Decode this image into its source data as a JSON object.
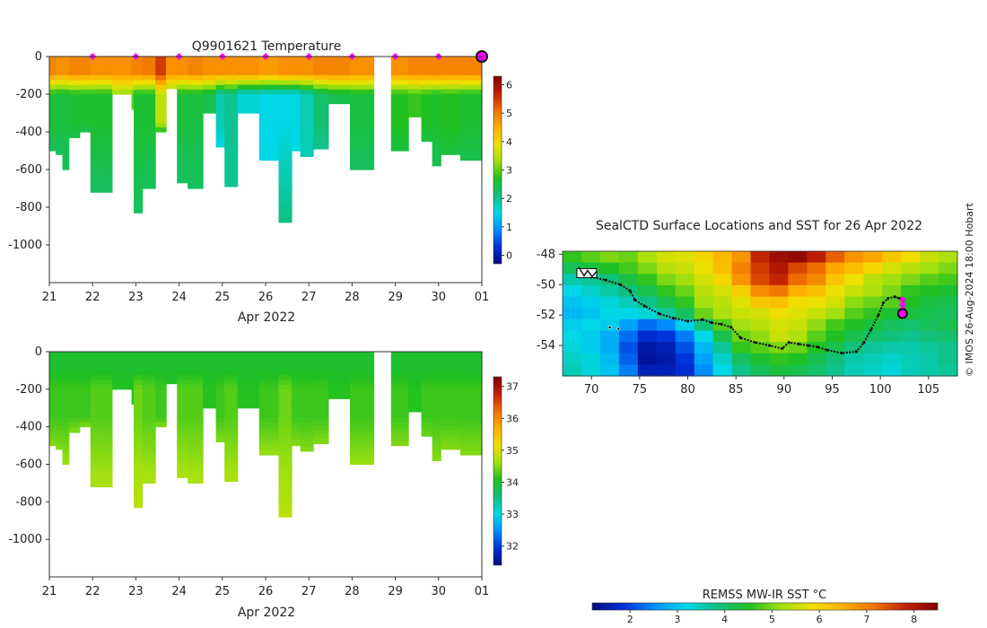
{
  "credit": "© IMOS 26-Aug-2024 18:00 Hobart",
  "chart_data": [
    {
      "id": "temperature",
      "type": "heatmap",
      "title": "Q9901621  Temperature",
      "xlabel": "Apr 2022",
      "xticks": [
        "21",
        "22",
        "23",
        "24",
        "25",
        "26",
        "27",
        "28",
        "29",
        "30",
        "01"
      ],
      "xlim": [
        0,
        10
      ],
      "ylim": [
        -1200,
        0
      ],
      "yticks": [
        0,
        -200,
        -400,
        -600,
        -800,
        -1000
      ],
      "surface_markers_days": [
        1,
        2,
        3,
        4,
        5,
        6,
        7,
        8,
        9,
        10
      ],
      "current_marker_day": 10,
      "colorbar": {
        "min": -0.3,
        "max": 6.3,
        "ticks": [
          0,
          1,
          2,
          3,
          4,
          5,
          6
        ],
        "colors": [
          "#000a80",
          "#0030d8",
          "#0090ff",
          "#00d8e8",
          "#10c080",
          "#20c020",
          "#a0e010",
          "#f0e000",
          "#ffb000",
          "#f07000",
          "#c02000",
          "#800000"
        ]
      },
      "profiles": [
        {
          "day": 0.0,
          "depth": 500,
          "top": 4.9,
          "mid": 2.6,
          "deep": 2.3
        },
        {
          "day": 0.15,
          "depth": 520,
          "top": 4.8,
          "mid": 2.5,
          "deep": 2.3
        },
        {
          "day": 0.3,
          "depth": 600,
          "top": 4.8,
          "mid": 2.5,
          "deep": 2.3
        },
        {
          "day": 0.45,
          "depth": 430,
          "top": 4.9,
          "mid": 2.6,
          "deep": 2.4
        },
        {
          "day": 0.7,
          "depth": 400,
          "top": 4.9,
          "mid": 2.6,
          "deep": 2.4
        },
        {
          "day": 0.95,
          "depth": 720,
          "top": 4.8,
          "mid": 2.6,
          "deep": 2.3
        },
        {
          "day": 1.45,
          "depth": 200,
          "top": 4.8,
          "mid": 3.2,
          "deep": 3.0
        },
        {
          "day": 1.9,
          "depth": 280,
          "top": 4.9,
          "mid": 3.0,
          "deep": 2.8
        },
        {
          "day": 1.95,
          "depth": 830,
          "top": 4.9,
          "mid": 2.6,
          "deep": 2.3
        },
        {
          "day": 2.15,
          "depth": 700,
          "top": 5.0,
          "mid": 2.6,
          "deep": 2.3
        },
        {
          "day": 2.45,
          "depth": 400,
          "top": 5.5,
          "mid": 3.5,
          "deep": 2.6
        },
        {
          "day": 2.7,
          "depth": 170,
          "top": 4.8,
          "mid": 2.9,
          "deep": 2.7
        },
        {
          "day": 2.95,
          "depth": 670,
          "top": 4.8,
          "mid": 2.5,
          "deep": 2.3
        },
        {
          "day": 3.2,
          "depth": 700,
          "top": 4.9,
          "mid": 2.5,
          "deep": 2.3
        },
        {
          "day": 3.55,
          "depth": 300,
          "top": 4.8,
          "mid": 2.4,
          "deep": 2.2
        },
        {
          "day": 3.85,
          "depth": 480,
          "top": 4.8,
          "mid": 1.8,
          "deep": 1.5
        },
        {
          "day": 4.05,
          "depth": 690,
          "top": 4.8,
          "mid": 2.0,
          "deep": 2.0
        },
        {
          "day": 4.35,
          "depth": 300,
          "top": 4.8,
          "mid": 1.6,
          "deep": 1.4
        },
        {
          "day": 4.85,
          "depth": 550,
          "top": 4.7,
          "mid": 1.5,
          "deep": 1.5
        },
        {
          "day": 5.3,
          "depth": 880,
          "top": 4.8,
          "mid": 1.5,
          "deep": 2.1
        },
        {
          "day": 5.6,
          "depth": 500,
          "top": 4.8,
          "mid": 1.5,
          "deep": 1.5
        },
        {
          "day": 5.8,
          "depth": 530,
          "top": 4.8,
          "mid": 1.8,
          "deep": 1.8
        },
        {
          "day": 6.1,
          "depth": 490,
          "top": 4.9,
          "mid": 2.2,
          "deep": 2.0
        },
        {
          "day": 6.45,
          "depth": 250,
          "top": 4.9,
          "mid": 2.4,
          "deep": 2.3
        },
        {
          "day": 6.95,
          "depth": 600,
          "top": 4.8,
          "mid": 2.5,
          "deep": 2.3
        },
        {
          "day": 7.5,
          "depth": 0,
          "top": 0,
          "mid": 0,
          "deep": 0
        },
        {
          "day": 7.9,
          "depth": 500,
          "top": 4.8,
          "mid": 2.7,
          "deep": 2.5
        },
        {
          "day": 8.3,
          "depth": 320,
          "top": 4.9,
          "mid": 2.8,
          "deep": 2.6
        },
        {
          "day": 8.6,
          "depth": 450,
          "top": 4.9,
          "mid": 2.7,
          "deep": 2.5
        },
        {
          "day": 8.85,
          "depth": 580,
          "top": 4.9,
          "mid": 2.6,
          "deep": 2.4
        },
        {
          "day": 9.05,
          "depth": 520,
          "top": 4.9,
          "mid": 2.7,
          "deep": 2.5
        },
        {
          "day": 9.5,
          "depth": 550,
          "top": 4.9,
          "mid": 2.6,
          "deep": 2.4
        }
      ]
    },
    {
      "id": "salinity",
      "type": "heatmap",
      "title": "",
      "xlabel": "Apr 2022",
      "xticks": [
        "21",
        "22",
        "23",
        "24",
        "25",
        "26",
        "27",
        "28",
        "29",
        "30",
        "01"
      ],
      "xlim": [
        0,
        10
      ],
      "ylim": [
        -1200,
        0
      ],
      "yticks": [
        0,
        -200,
        -400,
        -600,
        -800,
        -1000
      ],
      "colorbar": {
        "min": 31.4,
        "max": 37.3,
        "ticks": [
          32,
          33,
          34,
          35,
          36,
          37
        ],
        "colors": [
          "#000a80",
          "#0030d8",
          "#0090ff",
          "#00d8e8",
          "#10c080",
          "#20c020",
          "#a0e010",
          "#f0e000",
          "#ffb000",
          "#f07000",
          "#c02000",
          "#800000"
        ]
      },
      "profiles": [
        {
          "day": 0.0,
          "depth": 500,
          "top": 34.0,
          "mid": 34.2,
          "deep": 34.5
        },
        {
          "day": 0.15,
          "depth": 520,
          "top": 34.0,
          "mid": 34.2,
          "deep": 34.5
        },
        {
          "day": 0.3,
          "depth": 600,
          "top": 34.0,
          "mid": 34.2,
          "deep": 34.6
        },
        {
          "day": 0.45,
          "depth": 430,
          "top": 34.0,
          "mid": 34.2,
          "deep": 34.5
        },
        {
          "day": 0.7,
          "depth": 400,
          "top": 34.0,
          "mid": 34.2,
          "deep": 34.5
        },
        {
          "day": 0.95,
          "depth": 720,
          "top": 34.0,
          "mid": 34.3,
          "deep": 34.7
        },
        {
          "day": 1.45,
          "depth": 200,
          "top": 34.0,
          "mid": 34.1,
          "deep": 34.2
        },
        {
          "day": 1.9,
          "depth": 280,
          "top": 34.0,
          "mid": 34.1,
          "deep": 34.3
        },
        {
          "day": 1.95,
          "depth": 830,
          "top": 34.0,
          "mid": 34.4,
          "deep": 34.8
        },
        {
          "day": 2.15,
          "depth": 700,
          "top": 34.0,
          "mid": 34.3,
          "deep": 34.7
        },
        {
          "day": 2.45,
          "depth": 400,
          "top": 34.0,
          "mid": 34.2,
          "deep": 34.5
        },
        {
          "day": 2.7,
          "depth": 170,
          "top": 34.0,
          "mid": 34.1,
          "deep": 34.2
        },
        {
          "day": 2.95,
          "depth": 670,
          "top": 34.0,
          "mid": 34.3,
          "deep": 34.7
        },
        {
          "day": 3.2,
          "depth": 700,
          "top": 34.0,
          "mid": 34.3,
          "deep": 34.7
        },
        {
          "day": 3.55,
          "depth": 300,
          "top": 34.0,
          "mid": 34.1,
          "deep": 34.3
        },
        {
          "day": 3.85,
          "depth": 480,
          "top": 34.0,
          "mid": 34.2,
          "deep": 34.5
        },
        {
          "day": 4.05,
          "depth": 690,
          "top": 34.0,
          "mid": 34.3,
          "deep": 34.7
        },
        {
          "day": 4.35,
          "depth": 300,
          "top": 34.0,
          "mid": 34.1,
          "deep": 34.3
        },
        {
          "day": 4.85,
          "depth": 550,
          "top": 34.0,
          "mid": 34.2,
          "deep": 34.6
        },
        {
          "day": 5.3,
          "depth": 880,
          "top": 34.0,
          "mid": 34.4,
          "deep": 34.8
        },
        {
          "day": 5.6,
          "depth": 500,
          "top": 34.0,
          "mid": 34.2,
          "deep": 34.5
        },
        {
          "day": 5.8,
          "depth": 530,
          "top": 34.0,
          "mid": 34.2,
          "deep": 34.5
        },
        {
          "day": 6.1,
          "depth": 490,
          "top": 34.0,
          "mid": 34.2,
          "deep": 34.5
        },
        {
          "day": 6.45,
          "depth": 250,
          "top": 34.0,
          "mid": 34.1,
          "deep": 34.2
        },
        {
          "day": 6.95,
          "depth": 600,
          "top": 34.0,
          "mid": 34.2,
          "deep": 34.6
        },
        {
          "day": 7.5,
          "depth": 0,
          "top": 0,
          "mid": 0,
          "deep": 0
        },
        {
          "day": 7.9,
          "depth": 500,
          "top": 34.0,
          "mid": 34.2,
          "deep": 34.5
        },
        {
          "day": 8.3,
          "depth": 320,
          "top": 34.0,
          "mid": 34.1,
          "deep": 34.3
        },
        {
          "day": 8.6,
          "depth": 450,
          "top": 34.0,
          "mid": 34.2,
          "deep": 34.4
        },
        {
          "day": 8.85,
          "depth": 580,
          "top": 34.0,
          "mid": 34.2,
          "deep": 34.5
        },
        {
          "day": 9.05,
          "depth": 520,
          "top": 34.0,
          "mid": 34.2,
          "deep": 34.5
        },
        {
          "day": 9.5,
          "depth": 550,
          "top": 34.0,
          "mid": 34.2,
          "deep": 34.5
        }
      ]
    },
    {
      "id": "sst-map",
      "type": "heatmap",
      "title": "SealCTD Surface Locations and SST for 26 Apr 2022",
      "xlim": [
        67,
        108
      ],
      "ylim": [
        -56,
        -47.8
      ],
      "xticks": [
        70,
        75,
        80,
        85,
        90,
        95,
        100,
        105
      ],
      "yticks": [
        -48,
        -50,
        -52,
        -54
      ],
      "colorbar": {
        "label": "REMSS MW-IR SST °C",
        "min": 1.2,
        "max": 8.5,
        "ticks": [
          2,
          3,
          4,
          5,
          6,
          7,
          8
        ],
        "colors": [
          "#000a80",
          "#0030d8",
          "#0090ff",
          "#00d8e8",
          "#10c080",
          "#20c020",
          "#a0e010",
          "#f0e000",
          "#ffb000",
          "#f07000",
          "#c02000",
          "#800000"
        ]
      },
      "sst_rows": [
        [
          4.6,
          4.8,
          5.0,
          4.9,
          5.3,
          5.6,
          5.7,
          6.0,
          6.4,
          6.8,
          7.8,
          8.2,
          8.3,
          7.9,
          7.3,
          6.8,
          6.6,
          6.2,
          5.9,
          5.5,
          5.3
        ],
        [
          4.1,
          4.3,
          4.5,
          4.7,
          5.0,
          5.4,
          5.5,
          5.8,
          6.3,
          7.0,
          7.6,
          8.0,
          7.5,
          7.2,
          6.6,
          6.3,
          6.0,
          5.6,
          5.4,
          5.2,
          5.0
        ],
        [
          3.6,
          3.7,
          3.9,
          4.3,
          4.6,
          5.0,
          5.2,
          5.6,
          6.0,
          6.8,
          7.5,
          7.8,
          7.2,
          6.9,
          6.2,
          5.8,
          5.4,
          5.2,
          5.0,
          4.8,
          4.7
        ],
        [
          3.2,
          3.4,
          3.6,
          3.9,
          4.2,
          4.6,
          4.9,
          5.4,
          5.6,
          6.1,
          6.9,
          7.1,
          6.5,
          6.3,
          5.8,
          5.5,
          5.3,
          5.0,
          4.6,
          4.5,
          4.4
        ],
        [
          3.0,
          3.1,
          3.3,
          3.5,
          3.8,
          4.2,
          4.6,
          5.2,
          5.4,
          5.7,
          6.2,
          6.3,
          5.9,
          5.8,
          5.6,
          5.1,
          4.9,
          4.8,
          4.5,
          4.3,
          4.2
        ],
        [
          2.9,
          3.0,
          3.2,
          3.2,
          3.3,
          3.7,
          4.1,
          4.9,
          5.3,
          5.5,
          5.6,
          5.8,
          5.7,
          5.5,
          5.2,
          4.8,
          4.6,
          4.4,
          4.3,
          4.2,
          4.1
        ],
        [
          3.1,
          3.2,
          3.1,
          2.7,
          2.3,
          2.5,
          3.1,
          3.9,
          4.8,
          5.2,
          5.4,
          5.6,
          5.5,
          5.1,
          4.7,
          4.5,
          4.3,
          4.1,
          4.0,
          4.1,
          4.2
        ],
        [
          3.2,
          3.1,
          2.8,
          2.3,
          1.8,
          1.9,
          2.4,
          3.2,
          4.2,
          4.9,
          5.1,
          5.5,
          5.3,
          4.8,
          4.5,
          4.2,
          4.0,
          3.9,
          3.8,
          3.9,
          4.0
        ],
        [
          3.3,
          3.1,
          2.8,
          2.1,
          1.5,
          1.6,
          2.1,
          2.9,
          3.7,
          4.6,
          4.8,
          5.0,
          4.9,
          4.5,
          4.2,
          3.9,
          3.7,
          3.6,
          3.6,
          3.7,
          3.8
        ],
        [
          3.4,
          3.3,
          2.9,
          2.2,
          1.4,
          1.5,
          1.9,
          2.7,
          3.4,
          4.1,
          4.4,
          4.6,
          4.5,
          4.2,
          3.9,
          3.6,
          3.5,
          3.4,
          3.5,
          3.6,
          3.8
        ],
        [
          3.5,
          3.3,
          3.0,
          2.4,
          1.6,
          1.6,
          1.8,
          2.5,
          3.2,
          3.8,
          4.1,
          4.3,
          4.2,
          4.0,
          3.8,
          3.5,
          3.4,
          3.3,
          3.5,
          3.6,
          3.7
        ]
      ],
      "track": [
        [
          69.0,
          -49.2
        ],
        [
          70.0,
          -49.5
        ],
        [
          71.5,
          -49.7
        ],
        [
          73.0,
          -50.0
        ],
        [
          74.0,
          -50.4
        ],
        [
          74.5,
          -51.0
        ],
        [
          75.5,
          -51.4
        ],
        [
          77.0,
          -51.9
        ],
        [
          78.5,
          -52.2
        ],
        [
          80.0,
          -52.4
        ],
        [
          81.5,
          -52.3
        ],
        [
          82.5,
          -52.5
        ],
        [
          83.5,
          -52.6
        ],
        [
          84.5,
          -52.8
        ],
        [
          85.5,
          -53.5
        ],
        [
          87.0,
          -53.8
        ],
        [
          88.5,
          -54.0
        ],
        [
          89.8,
          -54.2
        ],
        [
          90.5,
          -53.8
        ],
        [
          91.5,
          -53.9
        ],
        [
          92.5,
          -54.0
        ],
        [
          93.5,
          -54.1
        ],
        [
          94.5,
          -54.3
        ],
        [
          96.0,
          -54.5
        ],
        [
          97.5,
          -54.4
        ],
        [
          98.3,
          -53.8
        ],
        [
          99.0,
          -53.0
        ],
        [
          99.8,
          -52.0
        ],
        [
          100.3,
          -51.2
        ],
        [
          100.8,
          -50.9
        ],
        [
          101.5,
          -50.8
        ],
        [
          102.0,
          -50.9
        ]
      ],
      "stray_points": [
        [
          71.9,
          -52.8
        ],
        [
          72.8,
          -52.9
        ]
      ],
      "markers": [
        [
          102.3,
          -51.0
        ],
        [
          102.3,
          -51.3
        ],
        [
          102.3,
          -51.6
        ]
      ],
      "current_location": [
        102.3,
        -51.9
      ],
      "deploy_cluster": [
        69.6,
        -49.3
      ]
    }
  ]
}
